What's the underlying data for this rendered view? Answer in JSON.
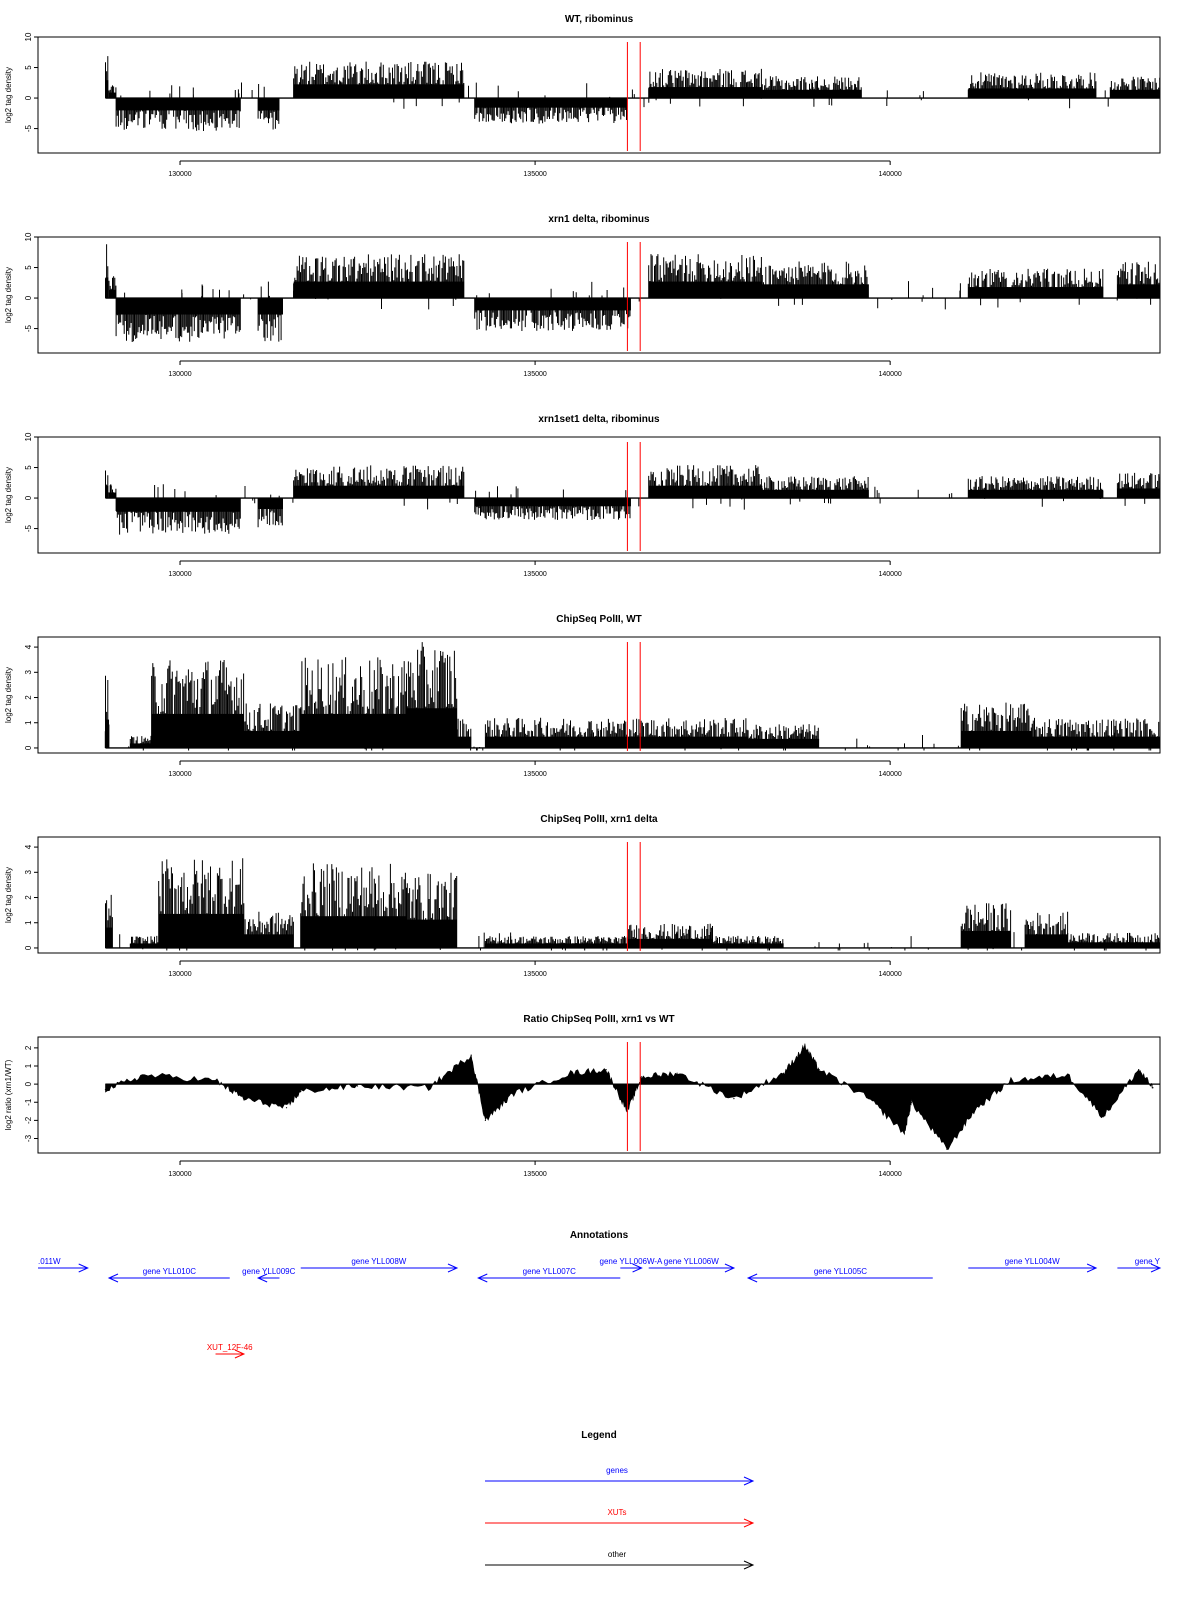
{
  "colors": {
    "ink": "#000000",
    "marker": "#ff0000",
    "gene": "#0000ff",
    "xut": "#ff0000",
    "other": "#000000"
  },
  "chart_data": [
    {
      "type": "bar",
      "title": "WT, ribominus",
      "ylabel": "log2 tag density",
      "ylim": [
        -9,
        10
      ],
      "xlim": [
        128000,
        143800
      ],
      "yticks": [
        10,
        5,
        0,
        -5
      ],
      "xticks": [
        130000,
        135000,
        140000
      ],
      "series": [
        {
          "segments": [
            {
              "from": 128950,
              "to": 128990,
              "value": 6.5
            },
            {
              "from": 129000,
              "to": 129100,
              "value": 2.0
            },
            {
              "from": 129100,
              "to": 130850,
              "value": -4.5
            },
            {
              "from": 131100,
              "to": 131400,
              "value": -4.5
            },
            {
              "from": 131600,
              "to": 134000,
              "value": 5.0
            },
            {
              "from": 134150,
              "to": 136300,
              "value": -3.5
            },
            {
              "from": 136600,
              "to": 138200,
              "value": 4.0
            },
            {
              "from": 138200,
              "to": 139600,
              "value": 3.0
            },
            {
              "from": 141100,
              "to": 142900,
              "value": 3.5
            },
            {
              "from": 143100,
              "to": 143800,
              "value": 3.0
            }
          ]
        }
      ]
    },
    {
      "type": "bar",
      "title": "xrn1 delta, ribominus",
      "ylabel": "log2 tag density",
      "ylim": [
        -9,
        10
      ],
      "xlim": [
        128000,
        143800
      ],
      "yticks": [
        10,
        5,
        0,
        -5
      ],
      "xticks": [
        130000,
        135000,
        140000
      ],
      "series": [
        {
          "segments": [
            {
              "from": 128950,
              "to": 128990,
              "value": 7.5
            },
            {
              "from": 129000,
              "to": 129100,
              "value": 3.0
            },
            {
              "from": 129100,
              "to": 130850,
              "value": -6.0
            },
            {
              "from": 131100,
              "to": 131450,
              "value": -6.0
            },
            {
              "from": 131600,
              "to": 134000,
              "value": 6.0
            },
            {
              "from": 134150,
              "to": 136350,
              "value": -4.5
            },
            {
              "from": 136600,
              "to": 138200,
              "value": 6.0
            },
            {
              "from": 138200,
              "to": 139700,
              "value": 5.0
            },
            {
              "from": 141100,
              "to": 143000,
              "value": 4.0
            },
            {
              "from": 143200,
              "to": 143800,
              "value": 5.0
            }
          ]
        }
      ]
    },
    {
      "type": "bar",
      "title": "xrn1set1 delta, ribominus",
      "ylabel": "log2 tag density",
      "ylim": [
        -9,
        10
      ],
      "xlim": [
        128000,
        143800
      ],
      "yticks": [
        10,
        5,
        0,
        -5
      ],
      "xticks": [
        130000,
        135000,
        140000
      ],
      "series": [
        {
          "segments": [
            {
              "from": 128950,
              "to": 128990,
              "value": 4.5
            },
            {
              "from": 129000,
              "to": 129100,
              "value": 2.0
            },
            {
              "from": 129100,
              "to": 130850,
              "value": -5.0
            },
            {
              "from": 131100,
              "to": 131450,
              "value": -4.0
            },
            {
              "from": 131600,
              "to": 134000,
              "value": 4.5
            },
            {
              "from": 134150,
              "to": 136350,
              "value": -3.0
            },
            {
              "from": 136600,
              "to": 138200,
              "value": 4.5
            },
            {
              "from": 138200,
              "to": 139700,
              "value": 3.0
            },
            {
              "from": 141100,
              "to": 143000,
              "value": 3.0
            },
            {
              "from": 143200,
              "to": 143800,
              "value": 3.5
            }
          ]
        }
      ]
    },
    {
      "type": "bar",
      "title": "ChipSeq PolII, WT",
      "ylabel": "log2 tag density",
      "ylim": [
        -0.2,
        4.4
      ],
      "xlim": [
        128000,
        143800
      ],
      "yticks": [
        4,
        3,
        2,
        1,
        0
      ],
      "xticks": [
        130000,
        135000,
        140000
      ],
      "series": [
        {
          "segments": [
            {
              "from": 128950,
              "to": 129000,
              "value": 2.5
            },
            {
              "from": 129300,
              "to": 129600,
              "value": 0.4
            },
            {
              "from": 129600,
              "to": 130900,
              "value": 3.0
            },
            {
              "from": 130900,
              "to": 131700,
              "value": 1.5
            },
            {
              "from": 131700,
              "to": 133200,
              "value": 3.0
            },
            {
              "from": 133200,
              "to": 133900,
              "value": 3.5
            },
            {
              "from": 133900,
              "to": 134100,
              "value": 1.0
            },
            {
              "from": 134300,
              "to": 136300,
              "value": 1.0
            },
            {
              "from": 136300,
              "to": 138000,
              "value": 1.0
            },
            {
              "from": 138000,
              "to": 139000,
              "value": 0.8
            },
            {
              "from": 141000,
              "to": 142000,
              "value": 1.5
            },
            {
              "from": 142000,
              "to": 143800,
              "value": 1.0
            }
          ]
        }
      ]
    },
    {
      "type": "bar",
      "title": "ChipSeq PolII, xrn1 delta",
      "ylabel": "log2 tag density",
      "ylim": [
        -0.2,
        4.4
      ],
      "xlim": [
        128000,
        143800
      ],
      "yticks": [
        4,
        3,
        2,
        1,
        0
      ],
      "xticks": [
        130000,
        135000,
        140000
      ],
      "series": [
        {
          "segments": [
            {
              "from": 128950,
              "to": 129050,
              "value": 1.8
            },
            {
              "from": 129300,
              "to": 129700,
              "value": 0.4
            },
            {
              "from": 129700,
              "to": 130900,
              "value": 3.0
            },
            {
              "from": 130900,
              "to": 131600,
              "value": 1.2
            },
            {
              "from": 131700,
              "to": 133200,
              "value": 2.8
            },
            {
              "from": 133200,
              "to": 133900,
              "value": 2.5
            },
            {
              "from": 134300,
              "to": 136300,
              "value": 0.4
            },
            {
              "from": 136300,
              "to": 137500,
              "value": 0.8
            },
            {
              "from": 137500,
              "to": 138500,
              "value": 0.4
            },
            {
              "from": 141000,
              "to": 141700,
              "value": 1.5
            },
            {
              "from": 141900,
              "to": 142500,
              "value": 1.2
            },
            {
              "from": 142500,
              "to": 143800,
              "value": 0.5
            }
          ]
        }
      ]
    },
    {
      "type": "area",
      "title": "Ratio ChipSeq PolII, xrn1 vs WT",
      "ylabel": "log2 ratio (xrn1/WT)",
      "ylim": [
        -3.8,
        2.6
      ],
      "xlim": [
        128000,
        143800
      ],
      "yticks": [
        2,
        1,
        0,
        -1,
        -2,
        -3
      ],
      "xticks": [
        130000,
        135000,
        140000
      ],
      "series": [
        {
          "x": [
            128950,
            129500,
            130500,
            130900,
            131500,
            131700,
            132500,
            133500,
            134100,
            134300,
            134700,
            135500,
            136000,
            136300,
            136500,
            137000,
            137800,
            138500,
            138800,
            139000,
            139700,
            140200,
            140300,
            140800,
            141200,
            141700,
            142500,
            143000,
            143500,
            143700
          ],
          "y": [
            -0.3,
            0.5,
            0.2,
            -0.8,
            -1.3,
            -0.4,
            -0.1,
            -0.2,
            1.6,
            -2.0,
            -0.5,
            0.6,
            0.8,
            -1.5,
            0.4,
            0.6,
            -0.8,
            0.6,
            2.1,
            0.8,
            -0.8,
            -2.7,
            -1.0,
            -3.6,
            -1.4,
            0.2,
            0.5,
            -1.8,
            0.8,
            -0.2
          ]
        }
      ]
    }
  ],
  "annotations": {
    "title": "Annotations",
    "genes": [
      {
        "label": ".011W",
        "start": 127800,
        "end": 128700,
        "strand": "+",
        "row": 0
      },
      {
        "label": "gene YLL010C",
        "start": 129000,
        "end": 130700,
        "strand": "-",
        "row": 1
      },
      {
        "label": "gene YLL009C",
        "start": 131100,
        "end": 131400,
        "strand": "-",
        "row": 1
      },
      {
        "label": "gene YLL008W",
        "start": 131700,
        "end": 133900,
        "strand": "+",
        "row": 0
      },
      {
        "label": "gene YLL007C",
        "start": 134200,
        "end": 136200,
        "strand": "-",
        "row": 1
      },
      {
        "label": "gene YLL006W-A",
        "start": 136200,
        "end": 136500,
        "strand": "+",
        "row": 0
      },
      {
        "label": "gene YLL006W",
        "start": 136600,
        "end": 137800,
        "strand": "+",
        "row": 0
      },
      {
        "label": "gene YLL005C",
        "start": 138000,
        "end": 140600,
        "strand": "-",
        "row": 1
      },
      {
        "label": "gene YLL004W",
        "start": 141100,
        "end": 142900,
        "strand": "+",
        "row": 0
      },
      {
        "label": "gene Y",
        "start": 143200,
        "end": 144500,
        "strand": "+",
        "row": 0
      }
    ],
    "xuts": [
      {
        "label": "XUT_12F-46",
        "start": 130500,
        "end": 130900,
        "strand": "+"
      }
    ]
  },
  "legend": {
    "title": "Legend",
    "items": [
      {
        "label": "genes",
        "color": "#0000ff"
      },
      {
        "label": "XUTs",
        "color": "#ff0000"
      },
      {
        "label": "other",
        "color": "#000000"
      }
    ]
  },
  "marker_positions": [
    136300,
    136480
  ]
}
